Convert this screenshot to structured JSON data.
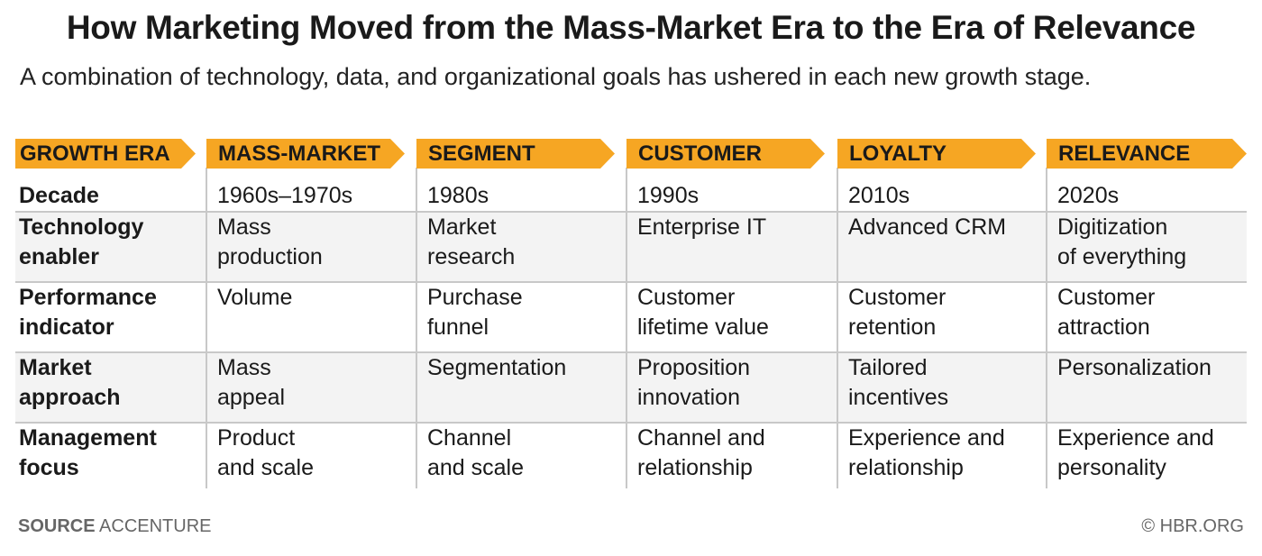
{
  "title": "How Marketing Moved from the Mass-Market Era to the Era of Relevance",
  "subtitle": "A combination of technology, data, and organizational goals has ushered in each new growth stage.",
  "colors": {
    "header_fill": "#f6a623",
    "band_gray": "#f3f3f3",
    "rule": "#c8c8c8"
  },
  "chart_data": {
    "type": "table",
    "corner_header": "GROWTH ERA",
    "columns": [
      "MASS-MARKET",
      "SEGMENT",
      "CUSTOMER",
      "LOYALTY",
      "RELEVANCE"
    ],
    "rows": [
      {
        "label": "Decade",
        "cells": [
          "1960s–1970s",
          "1980s",
          "1990s",
          "2010s",
          "2020s"
        ]
      },
      {
        "label": "Technology\nenabler",
        "cells": [
          "Mass\nproduction",
          "Market\nresearch",
          "Enterprise IT",
          "Advanced CRM",
          "Digitization\nof everything"
        ]
      },
      {
        "label": "Performance\nindicator",
        "cells": [
          "Volume",
          "Purchase\nfunnel",
          "Customer\nlifetime value",
          "Customer\nretention",
          "Customer\nattraction"
        ]
      },
      {
        "label": "Market\napproach",
        "cells": [
          "Mass\nappeal",
          "Segmentation",
          "Proposition\ninnovation",
          "Tailored\nincentives",
          "Personalization"
        ]
      },
      {
        "label": "Management\nfocus",
        "cells": [
          "Product\nand scale",
          "Channel\nand scale",
          "Channel and\nrelationship",
          "Experience and\nrelationship",
          "Experience and\npersonality"
        ]
      }
    ]
  },
  "footer": {
    "source_label": "SOURCE",
    "source_value": "ACCENTURE",
    "copyright": "© HBR.ORG"
  }
}
